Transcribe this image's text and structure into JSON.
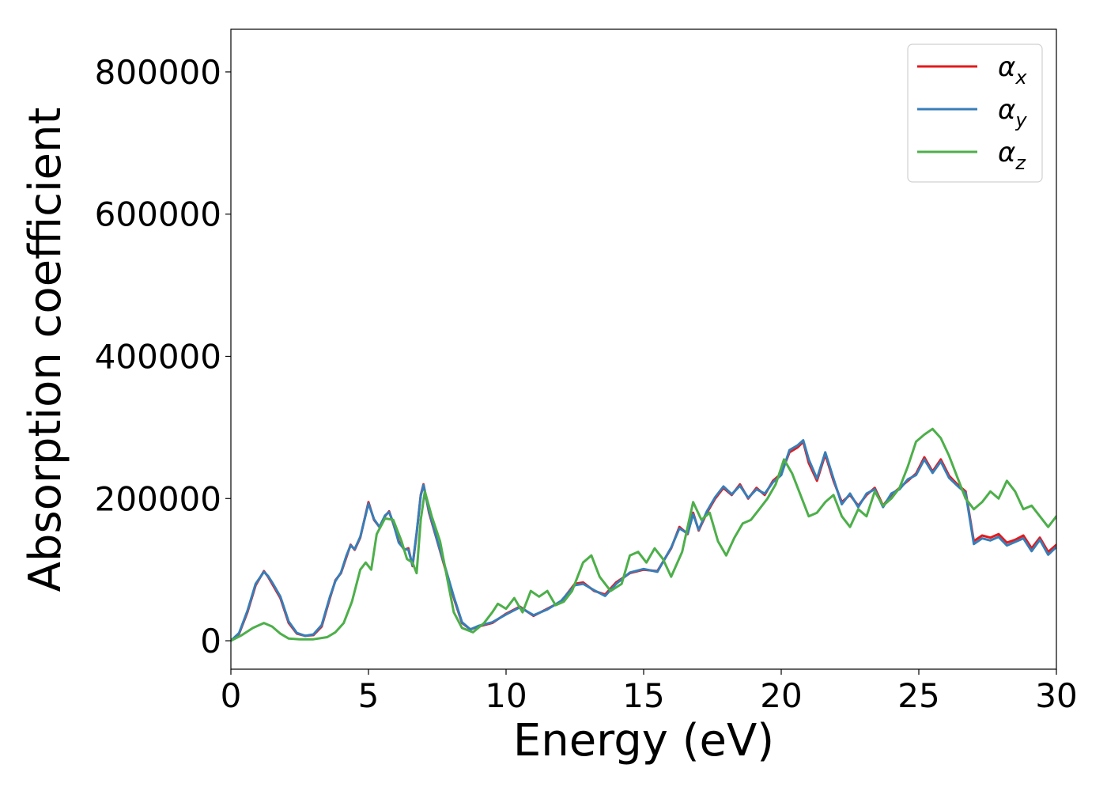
{
  "chart_data": {
    "type": "line",
    "title": "",
    "xlabel": "Energy (eV)",
    "ylabel": "Absorption coefficient",
    "xlim": [
      0,
      30
    ],
    "ylim": [
      -40000,
      860000
    ],
    "xticks": [
      0,
      5,
      10,
      15,
      20,
      25,
      30
    ],
    "xtick_labels": [
      "0",
      "5",
      "10",
      "15",
      "20",
      "25",
      "30"
    ],
    "yticks": [
      0,
      200000,
      400000,
      600000,
      800000
    ],
    "ytick_labels": [
      "0",
      "200000",
      "400000",
      "600000",
      "800000"
    ],
    "grid": false,
    "legend_position": "top-right",
    "series": [
      {
        "name": "αx",
        "legend_base": "α",
        "legend_sub": "x",
        "color": "#e41a1c",
        "x": [
          0,
          0.3,
          0.6,
          0.9,
          1.2,
          1.35,
          1.5,
          1.8,
          2.1,
          2.4,
          2.7,
          3.0,
          3.3,
          3.6,
          3.8,
          4.0,
          4.2,
          4.35,
          4.5,
          4.7,
          5.0,
          5.2,
          5.4,
          5.6,
          5.75,
          5.9,
          6.1,
          6.3,
          6.45,
          6.6,
          6.75,
          6.9,
          7.0,
          7.2,
          7.5,
          7.8,
          8.1,
          8.4,
          8.7,
          9.0,
          9.5,
          10.0,
          10.5,
          11.0,
          11.5,
          12.0,
          12.5,
          12.8,
          13.2,
          13.6,
          14.0,
          14.5,
          15.0,
          15.5,
          16.0,
          16.3,
          16.6,
          16.8,
          17.0,
          17.3,
          17.6,
          17.9,
          18.2,
          18.5,
          18.8,
          19.1,
          19.4,
          19.7,
          20.0,
          20.3,
          20.6,
          20.8,
          21.0,
          21.3,
          21.6,
          21.9,
          22.2,
          22.5,
          22.8,
          23.1,
          23.4,
          23.7,
          24.0,
          24.3,
          24.6,
          24.9,
          25.2,
          25.5,
          25.8,
          26.1,
          26.4,
          26.7,
          27.0,
          27.3,
          27.6,
          27.9,
          28.2,
          28.5,
          28.8,
          29.1,
          29.4,
          29.7,
          30.0
        ],
        "y": [
          0,
          10000,
          40000,
          78000,
          98000,
          90000,
          80000,
          60000,
          25000,
          10000,
          7000,
          8000,
          20000,
          60000,
          85000,
          95000,
          118000,
          135000,
          128000,
          145000,
          195000,
          170000,
          160000,
          175000,
          182000,
          165000,
          140000,
          128000,
          130000,
          105000,
          150000,
          205000,
          220000,
          180000,
          140000,
          100000,
          60000,
          25000,
          16000,
          20000,
          25000,
          38000,
          48000,
          35000,
          45000,
          55000,
          80000,
          82000,
          70000,
          65000,
          82000,
          95000,
          100000,
          98000,
          130000,
          160000,
          150000,
          180000,
          155000,
          180000,
          200000,
          215000,
          205000,
          220000,
          200000,
          215000,
          205000,
          225000,
          235000,
          265000,
          272000,
          280000,
          250000,
          225000,
          262000,
          225000,
          195000,
          205000,
          190000,
          205000,
          215000,
          190000,
          205000,
          215000,
          225000,
          235000,
          258000,
          238000,
          255000,
          232000,
          220000,
          210000,
          140000,
          148000,
          145000,
          150000,
          138000,
          142000,
          148000,
          130000,
          145000,
          125000,
          135000
        ]
      },
      {
        "name": "αy",
        "legend_base": "α",
        "legend_sub": "y",
        "color": "#377eb8",
        "x": [
          0,
          0.3,
          0.6,
          0.9,
          1.2,
          1.35,
          1.5,
          1.8,
          2.1,
          2.4,
          2.7,
          3.0,
          3.3,
          3.6,
          3.8,
          4.0,
          4.2,
          4.35,
          4.5,
          4.7,
          5.0,
          5.2,
          5.4,
          5.6,
          5.75,
          5.9,
          6.1,
          6.3,
          6.45,
          6.6,
          6.75,
          6.9,
          7.0,
          7.2,
          7.5,
          7.8,
          8.1,
          8.4,
          8.7,
          9.0,
          9.5,
          10.0,
          10.5,
          11.0,
          11.5,
          12.0,
          12.5,
          12.8,
          13.2,
          13.6,
          14.0,
          14.5,
          15.0,
          15.5,
          16.0,
          16.3,
          16.6,
          16.8,
          17.0,
          17.3,
          17.6,
          17.9,
          18.2,
          18.5,
          18.8,
          19.1,
          19.4,
          19.7,
          20.0,
          20.3,
          20.6,
          20.8,
          21.0,
          21.3,
          21.6,
          21.9,
          22.2,
          22.5,
          22.8,
          23.1,
          23.4,
          23.7,
          24.0,
          24.3,
          24.6,
          24.9,
          25.2,
          25.5,
          25.8,
          26.1,
          26.4,
          26.7,
          27.0,
          27.3,
          27.6,
          27.9,
          28.2,
          28.5,
          28.8,
          29.1,
          29.4,
          29.7,
          30.0
        ],
        "y": [
          0,
          11000,
          42000,
          80000,
          97000,
          91000,
          82000,
          62000,
          27000,
          11000,
          7000,
          9000,
          22000,
          62000,
          84000,
          96000,
          120000,
          134000,
          129000,
          146000,
          193000,
          171000,
          160000,
          176000,
          181000,
          166000,
          138000,
          129000,
          128000,
          106000,
          152000,
          204000,
          219000,
          182000,
          141000,
          102000,
          62000,
          26000,
          16000,
          21000,
          26000,
          37000,
          47000,
          36000,
          44000,
          56000,
          78000,
          80000,
          71000,
          63000,
          80000,
          96000,
          101000,
          97000,
          131000,
          158000,
          151000,
          178000,
          156000,
          182000,
          202000,
          217000,
          206000,
          218000,
          201000,
          213000,
          207000,
          223000,
          233000,
          268000,
          275000,
          282000,
          255000,
          228000,
          265000,
          228000,
          192000,
          207000,
          188000,
          207000,
          213000,
          188000,
          207000,
          213000,
          227000,
          233000,
          255000,
          236000,
          252000,
          229000,
          218000,
          208000,
          136000,
          144000,
          141000,
          146000,
          134000,
          139000,
          144000,
          126000,
          142000,
          121000,
          132000
        ]
      },
      {
        "name": "αz",
        "legend_base": "α",
        "legend_sub": "z",
        "color": "#4daf4a",
        "x": [
          0,
          0.4,
          0.8,
          1.2,
          1.5,
          1.8,
          2.1,
          2.5,
          3.0,
          3.5,
          3.8,
          4.1,
          4.4,
          4.7,
          4.9,
          5.1,
          5.3,
          5.6,
          5.9,
          6.2,
          6.4,
          6.6,
          6.75,
          6.9,
          7.05,
          7.3,
          7.6,
          7.9,
          8.1,
          8.4,
          8.8,
          9.2,
          9.5,
          9.7,
          10.0,
          10.3,
          10.6,
          10.9,
          11.2,
          11.5,
          11.8,
          12.1,
          12.4,
          12.8,
          13.1,
          13.4,
          13.8,
          14.2,
          14.5,
          14.8,
          15.1,
          15.4,
          15.7,
          16.0,
          16.4,
          16.8,
          17.1,
          17.4,
          17.7,
          18.0,
          18.3,
          18.6,
          18.9,
          19.2,
          19.5,
          19.8,
          20.1,
          20.4,
          20.7,
          21.0,
          21.3,
          21.6,
          21.9,
          22.2,
          22.5,
          22.8,
          23.1,
          23.4,
          23.7,
          24.0,
          24.3,
          24.6,
          24.9,
          25.2,
          25.5,
          25.8,
          26.1,
          26.4,
          26.7,
          27.0,
          27.3,
          27.6,
          27.9,
          28.2,
          28.5,
          28.8,
          29.1,
          29.4,
          29.7,
          30.0
        ],
        "y": [
          0,
          8000,
          18000,
          25000,
          20000,
          10000,
          3000,
          2000,
          2000,
          5000,
          12000,
          25000,
          55000,
          100000,
          110000,
          100000,
          150000,
          172000,
          170000,
          140000,
          115000,
          110000,
          95000,
          170000,
          210000,
          175000,
          140000,
          80000,
          40000,
          18000,
          12000,
          25000,
          40000,
          52000,
          45000,
          60000,
          40000,
          70000,
          62000,
          70000,
          50000,
          55000,
          70000,
          110000,
          120000,
          90000,
          70000,
          80000,
          120000,
          125000,
          110000,
          130000,
          115000,
          90000,
          125000,
          195000,
          170000,
          180000,
          140000,
          120000,
          145000,
          165000,
          170000,
          185000,
          200000,
          220000,
          255000,
          235000,
          205000,
          175000,
          180000,
          195000,
          205000,
          175000,
          160000,
          185000,
          175000,
          210000,
          190000,
          200000,
          215000,
          245000,
          280000,
          290000,
          298000,
          285000,
          260000,
          230000,
          200000,
          185000,
          195000,
          210000,
          200000,
          225000,
          210000,
          185000,
          190000,
          175000,
          160000,
          175000
        ]
      }
    ]
  }
}
